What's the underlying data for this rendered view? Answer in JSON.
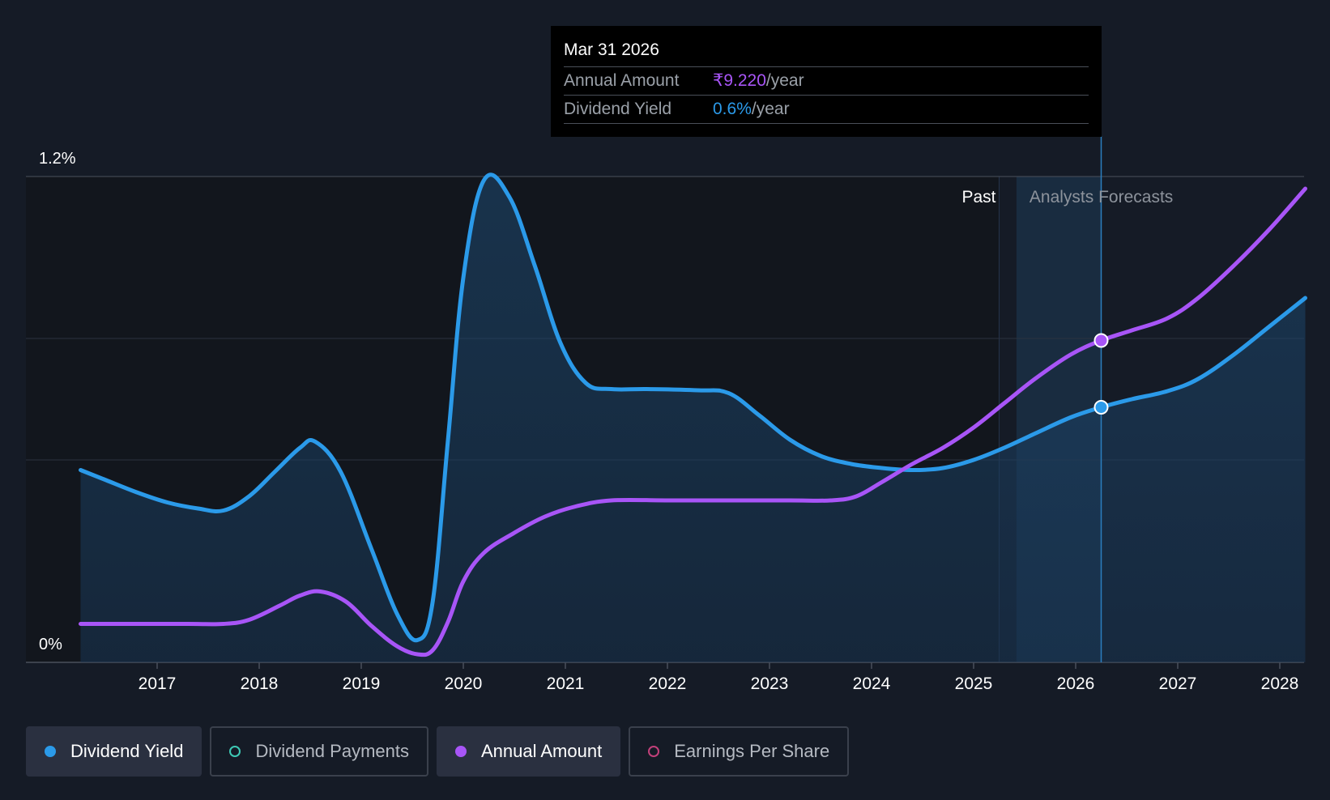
{
  "tooltip": {
    "date": "Mar 31 2026",
    "rows": [
      {
        "label": "Annual Amount",
        "value": "₹9.220",
        "unit": "/year"
      },
      {
        "label": "Dividend Yield",
        "value": "0.6%",
        "unit": "/year"
      }
    ]
  },
  "regions": {
    "past_label": "Past",
    "forecast_label": "Analysts Forecasts"
  },
  "legend": [
    {
      "label": "Dividend Yield",
      "active": true,
      "color": "#2b9ae9"
    },
    {
      "label": "Dividend Payments",
      "active": false,
      "color": "#3ec9b5"
    },
    {
      "label": "Annual Amount",
      "active": true,
      "color": "#a855f7"
    },
    {
      "label": "Earnings Per Share",
      "active": false,
      "color": "#c2407a"
    }
  ],
  "colors": {
    "background": "#151b26",
    "past_background": "#12161d",
    "dividend_yield": "#2b9ae9",
    "annual_amount": "#a855f7",
    "grid": "#3a404c"
  },
  "chart_data": {
    "type": "line",
    "ylim": [
      0,
      1.2
    ],
    "y_ticks": [
      {
        "value": 1.2,
        "label": "1.2%"
      },
      {
        "value": 0,
        "label": "0%"
      }
    ],
    "x_range": [
      2016.2,
      2028.25
    ],
    "x_ticks": [
      "2017",
      "2018",
      "2019",
      "2020",
      "2021",
      "2022",
      "2023",
      "2024",
      "2025",
      "2026",
      "2027",
      "2028"
    ],
    "past_end": 2025.25,
    "forecast_start": 2025.42,
    "highlight_x": 2026.25,
    "series": [
      {
        "name": "Dividend Yield",
        "x": [
          2016.25,
          2016.5,
          2016.8,
          2017.1,
          2017.4,
          2017.65,
          2017.9,
          2018.15,
          2018.4,
          2018.55,
          2018.8,
          2019.1,
          2019.35,
          2019.55,
          2019.7,
          2019.85,
          2020.0,
          2020.2,
          2020.45,
          2020.7,
          2020.95,
          2021.2,
          2021.45,
          2021.8,
          2022.3,
          2022.6,
          2022.9,
          2023.2,
          2023.5,
          2023.8,
          2024.1,
          2024.4,
          2024.7,
          2025.0,
          2025.3,
          2025.6,
          2025.95,
          2026.25,
          2026.55,
          2026.9,
          2027.2,
          2027.55,
          2027.9,
          2028.25
        ],
        "values": [
          0.475,
          0.45,
          0.42,
          0.395,
          0.38,
          0.375,
          0.41,
          0.47,
          0.53,
          0.545,
          0.47,
          0.28,
          0.12,
          0.055,
          0.15,
          0.55,
          0.95,
          1.19,
          1.15,
          0.98,
          0.79,
          0.69,
          0.675,
          0.675,
          0.672,
          0.665,
          0.61,
          0.55,
          0.51,
          0.49,
          0.48,
          0.475,
          0.48,
          0.5,
          0.53,
          0.565,
          0.605,
          0.63,
          0.65,
          0.67,
          0.7,
          0.76,
          0.83,
          0.9
        ]
      },
      {
        "name": "Annual Amount",
        "x": [
          2016.25,
          2016.8,
          2017.3,
          2017.65,
          2017.9,
          2018.2,
          2018.4,
          2018.6,
          2018.85,
          2019.1,
          2019.35,
          2019.55,
          2019.7,
          2019.85,
          2020.0,
          2020.2,
          2020.5,
          2020.8,
          2021.1,
          2021.45,
          2022.0,
          2022.6,
          2023.2,
          2023.6,
          2023.85,
          2024.1,
          2024.4,
          2024.7,
          2025.0,
          2025.3,
          2025.6,
          2025.95,
          2026.25,
          2026.55,
          2026.9,
          2027.2,
          2027.55,
          2027.9,
          2028.25
        ],
        "values": [
          0.095,
          0.095,
          0.095,
          0.095,
          0.105,
          0.14,
          0.165,
          0.175,
          0.15,
          0.09,
          0.04,
          0.02,
          0.03,
          0.1,
          0.2,
          0.27,
          0.32,
          0.36,
          0.385,
          0.4,
          0.4,
          0.4,
          0.4,
          0.4,
          0.41,
          0.445,
          0.49,
          0.53,
          0.58,
          0.64,
          0.7,
          0.76,
          0.795,
          0.82,
          0.85,
          0.9,
          0.98,
          1.07,
          1.17
        ]
      }
    ],
    "highlight_points": [
      {
        "series": "Annual Amount",
        "x": 2026.25,
        "value": 0.795
      },
      {
        "series": "Dividend Yield",
        "x": 2026.25,
        "value": 0.63
      }
    ]
  }
}
